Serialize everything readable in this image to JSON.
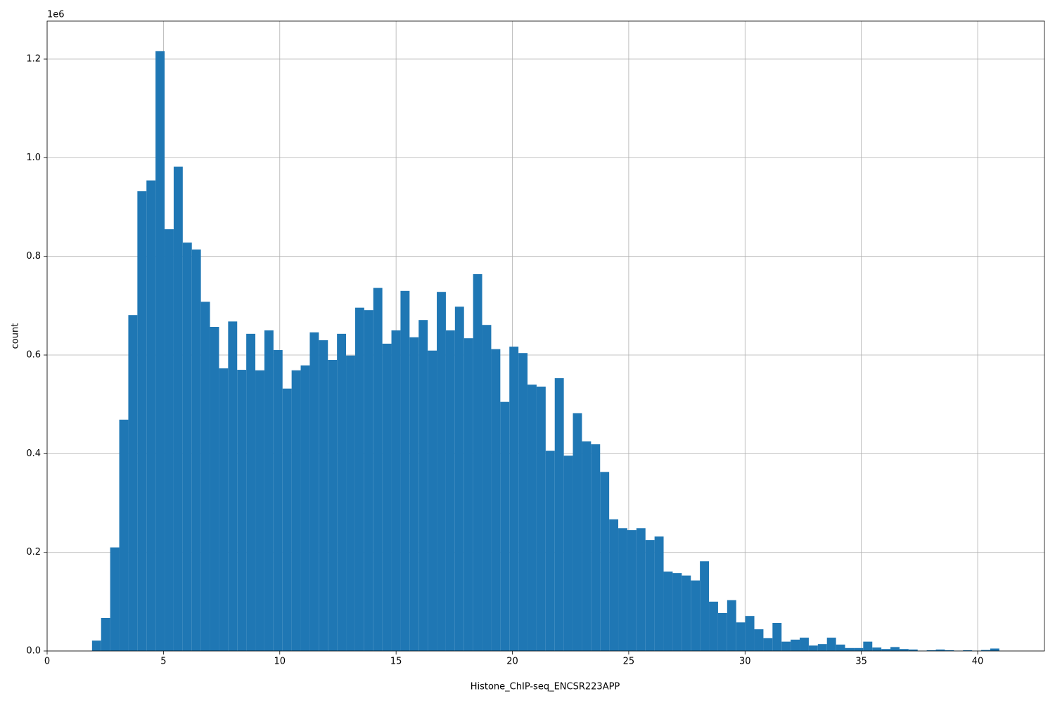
{
  "chart_data": {
    "type": "histogram",
    "xlabel": "Histone_ChIP-seq_ENCSR223APP",
    "ylabel": "count",
    "y_offset_label": "1e6",
    "color": "#1f77b4",
    "grid": true,
    "xlim": [
      0,
      42.87
    ],
    "ylim": [
      0,
      1277000
    ],
    "xticks": [
      0,
      5,
      10,
      15,
      20,
      25,
      30,
      35,
      40
    ],
    "yticks": [
      {
        "value": 0,
        "label": "0.0"
      },
      {
        "value": 200000,
        "label": "0.2"
      },
      {
        "value": 400000,
        "label": "0.4"
      },
      {
        "value": 600000,
        "label": "0.6"
      },
      {
        "value": 800000,
        "label": "0.8"
      },
      {
        "value": 1000000,
        "label": "1.0"
      },
      {
        "value": 1200000,
        "label": "1.2"
      }
    ],
    "bins": [
      1.93,
      2.32,
      2.71,
      3.1,
      3.49,
      3.88,
      4.27,
      4.66,
      5.05,
      5.44,
      5.83,
      6.22,
      6.61,
      7.0,
      7.39,
      7.78,
      8.17,
      8.56,
      8.95,
      9.34,
      9.73,
      10.12,
      10.51,
      10.9,
      11.29,
      11.68,
      12.07,
      12.46,
      12.85,
      13.24,
      13.63,
      14.02,
      14.41,
      14.8,
      15.19,
      15.58,
      15.97,
      16.36,
      16.75,
      17.14,
      17.53,
      17.92,
      18.31,
      18.7,
      19.09,
      19.48,
      19.87,
      20.26,
      20.65,
      21.04,
      21.43,
      21.82,
      22.21,
      22.6,
      22.99,
      23.38,
      23.77,
      24.16,
      24.55,
      24.94,
      25.33,
      25.72,
      26.11,
      26.5,
      26.89,
      27.28,
      27.67,
      28.06,
      28.45,
      28.84,
      29.23,
      29.62,
      30.01,
      30.4,
      30.79,
      31.18,
      31.57,
      31.96,
      32.35,
      32.74,
      33.13,
      33.52,
      33.91,
      34.3,
      34.69,
      35.08,
      35.47,
      35.86,
      36.25,
      36.64,
      37.03,
      37.42,
      37.81,
      38.2,
      38.59,
      38.98,
      39.37,
      39.76,
      40.15,
      40.54,
      40.93
    ],
    "counts": [
      21000,
      67000,
      210000,
      469000,
      681000,
      932000,
      954000,
      1216000,
      855000,
      982000,
      828000,
      814000,
      708000,
      657000,
      573000,
      668000,
      570000,
      643000,
      569000,
      650000,
      610000,
      532000,
      569000,
      579000,
      646000,
      630000,
      590000,
      643000,
      599000,
      696000,
      691000,
      736000,
      623000,
      650000,
      730000,
      636000,
      671000,
      609000,
      728000,
      650000,
      698000,
      634000,
      764000,
      661000,
      612000,
      505000,
      617000,
      604000,
      540000,
      536000,
      406000,
      553000,
      396000,
      482000,
      425000,
      419000,
      363000,
      267000,
      249000,
      245000,
      249000,
      225000,
      232000,
      161000,
      158000,
      153000,
      143000,
      182000,
      100000,
      77000,
      103000,
      58000,
      71000,
      44000,
      26000,
      57000,
      19000,
      23000,
      27000,
      11000,
      14000,
      27000,
      13000,
      6000,
      6000,
      19000,
      7000,
      4000,
      8000,
      4000,
      3000,
      500,
      1500,
      3000,
      1500,
      500,
      1500,
      500,
      2000,
      5000
    ]
  }
}
